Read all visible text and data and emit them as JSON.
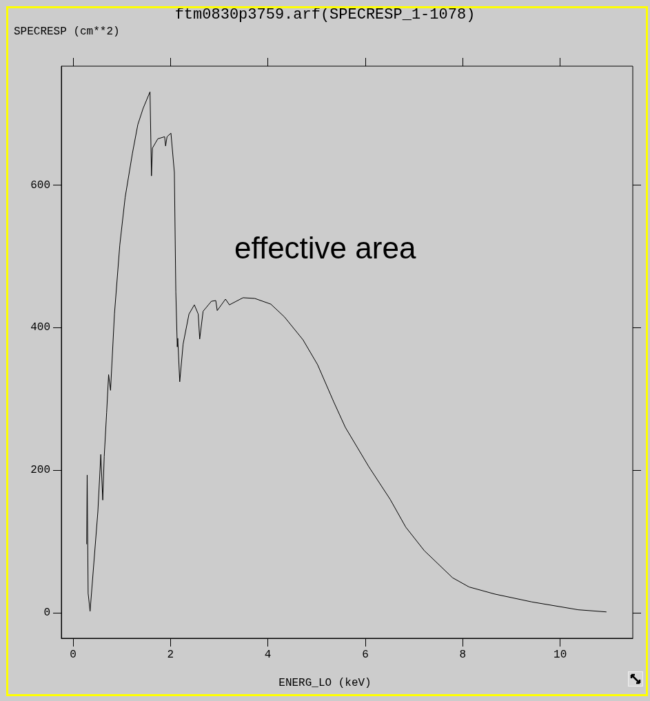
{
  "chart_data": {
    "type": "line",
    "title": "ftm0830p3759.arf(SPECRESP_1-1078)",
    "ylabel": "SPECRESP (cm**2)",
    "xlabel": "ENERG_LO (keV)",
    "annotations": [
      "effective area"
    ],
    "x": [
      0.28,
      0.29,
      0.31,
      0.35,
      0.51,
      0.57,
      0.61,
      0.64,
      0.69,
      0.73,
      0.77,
      0.85,
      0.96,
      1.07,
      1.22,
      1.33,
      1.44,
      1.58,
      1.61,
      1.63,
      1.74,
      1.88,
      1.9,
      1.93,
      2.01,
      2.08,
      2.11,
      2.14,
      2.15,
      2.19,
      2.26,
      2.38,
      2.49,
      2.57,
      2.6,
      2.67,
      2.84,
      2.93,
      2.96,
      3.13,
      3.21,
      3.49,
      3.73,
      4.06,
      4.34,
      4.72,
      5.02,
      5.35,
      5.59,
      6.07,
      6.51,
      6.83,
      7.21,
      7.79,
      8.13,
      8.66,
      9.42,
      10.37,
      10.95
    ],
    "series": [
      {
        "color": "#000000",
        "values": [
          96,
          193,
          27,
          2,
          142,
          222,
          158,
          219,
          281,
          334,
          312,
          419,
          516,
          583,
          645,
          685,
          708,
          731,
          613,
          652,
          665,
          668,
          655,
          668,
          673,
          618,
          450,
          373,
          385,
          324,
          377,
          419,
          432,
          419,
          384,
          423,
          437,
          438,
          424,
          440,
          432,
          442,
          441,
          433,
          415,
          383,
          348,
          296,
          260,
          205,
          159,
          120,
          87,
          49,
          36,
          26,
          15,
          4,
          1
        ]
      }
    ],
    "xlim": [
      -0.24,
      11.49
    ],
    "ylim": [
      -36,
      767
    ],
    "xticks": [
      0,
      2,
      4,
      6,
      8,
      10
    ],
    "yticks": [
      0,
      200,
      400,
      600
    ],
    "marker": "none",
    "line_style": "solid"
  }
}
